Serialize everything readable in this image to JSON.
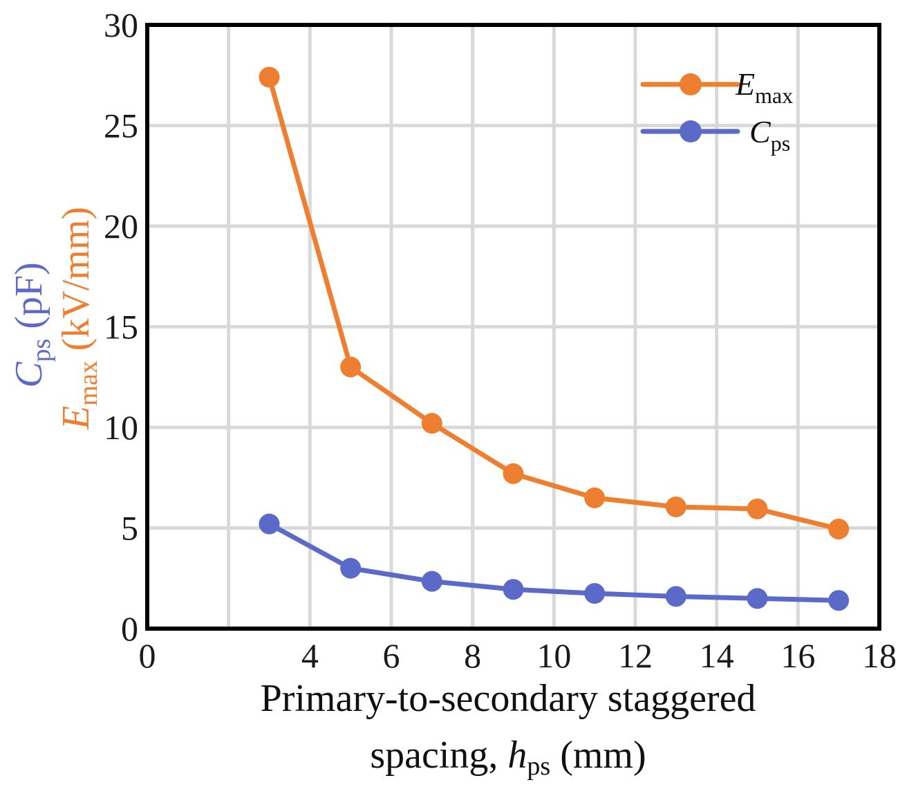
{
  "chart_data": {
    "type": "line",
    "title": "",
    "xlabel_line1": "Primary-to-secondary staggered",
    "xlabel_line2_prefix": "spacing, ",
    "xlabel_var": "h",
    "xlabel_sub": "ps",
    "xlabel_unit": " (mm)",
    "ylabel_cps": {
      "var": "C",
      "sub": "ps",
      "unit": " (pF)",
      "color": "#5b6ac8"
    },
    "ylabel_emax": {
      "var": "E",
      "sub": "max",
      "unit": " (kV/mm)",
      "color": "#ee7f30"
    },
    "xlim": [
      0,
      18
    ],
    "ylim": [
      0,
      30
    ],
    "xticks": [
      0,
      2,
      4,
      6,
      8,
      10,
      12,
      14,
      16,
      18
    ],
    "xtick_labels": [
      "0",
      "",
      "4",
      "6",
      "8",
      "10",
      "12",
      "14",
      "16",
      "18"
    ],
    "yticks": [
      0,
      5,
      10,
      15,
      20,
      25,
      30
    ],
    "ytick_labels": [
      "0",
      "5",
      "10",
      "15",
      "20",
      "25",
      "30"
    ],
    "grid": true,
    "legend_position": "top-right",
    "x": [
      3,
      5,
      7,
      9,
      11,
      13,
      15,
      17
    ],
    "series": [
      {
        "name": "E_max",
        "label_var": "E",
        "label_sub": "max",
        "color": "#ee7f30",
        "values": [
          27.4,
          13.0,
          10.2,
          7.7,
          6.5,
          6.05,
          5.95,
          4.95
        ]
      },
      {
        "name": "C_ps",
        "label_var": "C",
        "label_sub": "ps",
        "color": "#5b6ac8",
        "values": [
          5.2,
          3.0,
          2.35,
          1.95,
          1.75,
          1.6,
          1.5,
          1.4
        ]
      }
    ]
  }
}
